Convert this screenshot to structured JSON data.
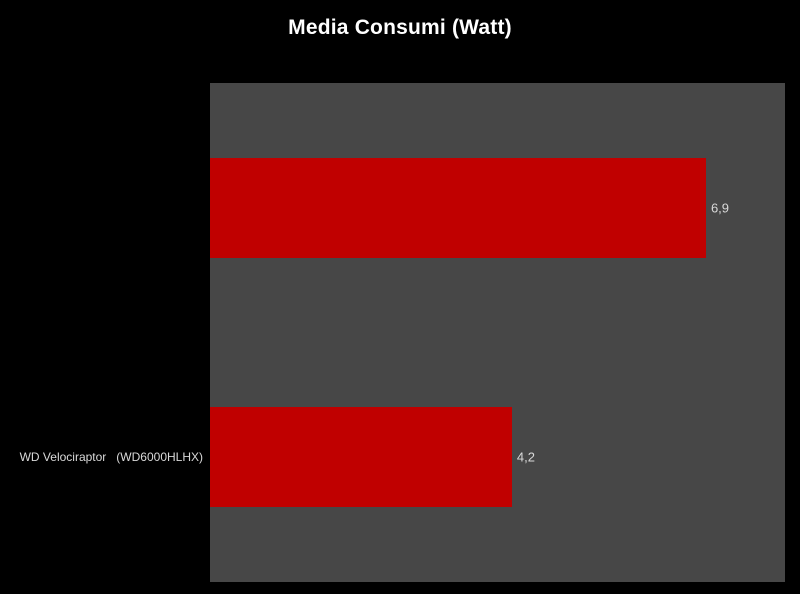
{
  "chart_data": {
    "type": "bar",
    "orientation": "horizontal",
    "title": "Media Consumi (Watt)",
    "categories": [
      "",
      "WD Velociraptor   (WD6000HLHX)"
    ],
    "values": [
      6.9,
      4.2
    ],
    "value_labels": [
      "6,9",
      "4,2"
    ],
    "xlabel": "",
    "ylabel": "",
    "xlim": [
      0,
      8
    ],
    "grid": false,
    "legend": false,
    "bar_band_fraction": 0.4,
    "colors": {
      "background": "#000000",
      "plot_background": "#474747",
      "bar": "#c00000",
      "title_text": "#ffffff",
      "label_text": "#d9d9d9"
    }
  }
}
